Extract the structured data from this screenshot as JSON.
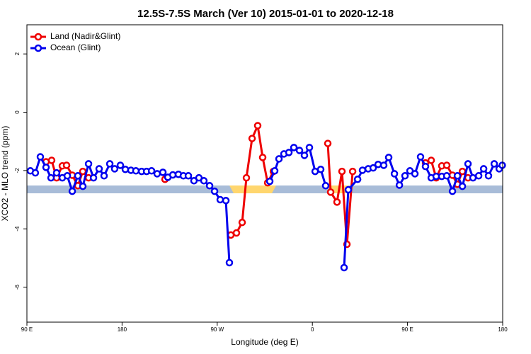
{
  "chart_data": {
    "type": "line",
    "title": "12.5S-7.5S March (Ver 10)   2015-01-01 to 2020-12-18",
    "xlabel": "Longitude (deg E)",
    "ylabel": "XCO2 - MLO trend (ppm)",
    "xlim": [
      90,
      540
    ],
    "ylim": [
      -7.2,
      3.0
    ],
    "xticks": [
      {
        "value": 90,
        "label": "90 E"
      },
      {
        "value": 180,
        "label": "180"
      },
      {
        "value": 270,
        "label": "90 W"
      },
      {
        "value": 360,
        "label": "0"
      },
      {
        "value": 450,
        "label": "90 E"
      },
      {
        "value": 540,
        "label": "180"
      }
    ],
    "yticks": [
      2,
      0,
      -2,
      -4,
      -6
    ],
    "legend": "upper left",
    "series": [
      {
        "name": "Land (Nadir&Glint)",
        "color": "#ee0000",
        "x": [
          108.1,
          113.4,
          118.1,
          123.5,
          127.5,
          132.9,
          138.2,
          142.9,
          148.3,
          null,
          220.6,
          null,
          282.9,
          288.2,
          293.6,
          297.6,
          303.0,
          308.3,
          313.0,
          317.7,
          323.1,
          null,
          374.6,
          377.3,
          383.3,
          388.0,
          392.7,
          398.1,
          null,
          467.0,
          472.4,
          477.1,
          482.4,
          487.1,
          492.5,
          497.2,
          501.9,
          507.2
        ],
        "values": [
          -1.7,
          -1.65,
          -2.25,
          -1.84,
          -1.82,
          -2.16,
          -2.52,
          -2.03,
          -2.25,
          null,
          -2.3,
          null,
          -4.21,
          -4.14,
          -3.78,
          -2.25,
          -0.9,
          -0.46,
          -1.55,
          -2.42,
          -2.03,
          null,
          -1.07,
          -2.74,
          -3.08,
          -2.03,
          -4.53,
          -2.03,
          null,
          -1.74,
          -1.65,
          -2.25,
          -1.84,
          -1.82,
          -2.16,
          -2.47,
          -2.03,
          -2.25
        ]
      },
      {
        "name": "Ocean (Glint)",
        "color": "#0000ee",
        "x": [
          93.3,
          98.0,
          102.7,
          108.1,
          112.8,
          118.1,
          123.5,
          128.2,
          132.9,
          138.2,
          142.9,
          148.3,
          153.0,
          158.3,
          163.0,
          168.4,
          173.0,
          178.4,
          183.1,
          188.4,
          193.1,
          198.5,
          203.2,
          207.9,
          213.2,
          218.6,
          223.3,
          228.0,
          233.3,
          238.0,
          242.7,
          248.0,
          252.7,
          257.4,
          262.8,
          267.5,
          272.8,
          278.2,
          281.5,
          null,
          319.7,
          324.4,
          328.4,
          333.1,
          337.8,
          342.5,
          347.8,
          352.5,
          357.2,
          362.6,
          367.9,
          372.6,
          null,
          390.0,
          394.0,
          402.8,
          407.4,
          412.8,
          417.5,
          422.2,
          427.5,
          432.2,
          437.6,
          442.3,
          447.6,
          452.3,
          457.0,
          462.3,
          467.0,
          472.4,
          477.1,
          482.4,
          487.1,
          492.5,
          497.2,
          501.9,
          507.2,
          511.9,
          517.3,
          522.0,
          526.6,
          532.0,
          536.7,
          539.6
        ],
        "values": [
          -2.01,
          -2.08,
          -1.53,
          -1.89,
          -2.25,
          -2.08,
          -2.25,
          -2.18,
          -2.71,
          -2.18,
          -2.54,
          -1.77,
          -2.25,
          -1.94,
          -2.18,
          -1.77,
          -1.94,
          -1.82,
          -1.96,
          -1.99,
          -2.01,
          -2.03,
          -2.03,
          -2.01,
          -2.11,
          -2.06,
          -2.23,
          -2.15,
          -2.13,
          -2.18,
          -2.18,
          -2.35,
          -2.25,
          -2.35,
          -2.52,
          -2.71,
          -3.0,
          -3.03,
          -5.16,
          null,
          -2.37,
          -2.01,
          -1.6,
          -1.43,
          -1.38,
          -1.21,
          -1.31,
          -1.48,
          -1.21,
          -2.03,
          -1.96,
          -2.52,
          null,
          -5.33,
          -2.66,
          -2.3,
          -1.99,
          -1.94,
          -1.91,
          -1.79,
          -1.82,
          -1.55,
          -2.11,
          -2.5,
          -2.18,
          -2.01,
          -2.11,
          -1.53,
          -1.86,
          -2.25,
          -2.2,
          -2.2,
          -2.18,
          -2.71,
          -2.18,
          -2.54,
          -1.77,
          -2.25,
          -2.18,
          -1.94,
          -2.18,
          -1.77,
          -1.94,
          -1.82
        ]
      }
    ]
  }
}
